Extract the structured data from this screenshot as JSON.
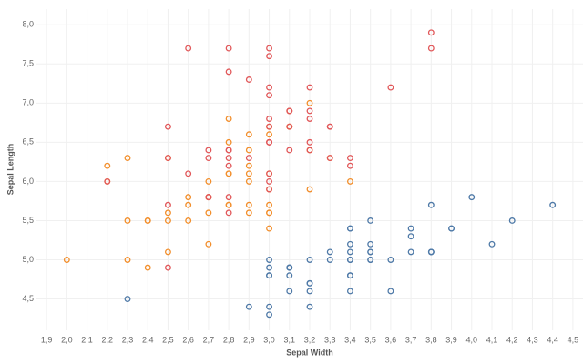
{
  "chart_data": {
    "type": "scatter",
    "x_label": "Sepal Width",
    "y_label": "Sepal Length",
    "grid": true,
    "xlim": [
      1.85,
      4.55
    ],
    "ylim": [
      4.1,
      8.2
    ],
    "xticks": [
      {
        "value": 1.9,
        "label": "1,9"
      },
      {
        "value": 2.0,
        "label": "2,0"
      },
      {
        "value": 2.1,
        "label": "2,1"
      },
      {
        "value": 2.2,
        "label": "2,2"
      },
      {
        "value": 2.3,
        "label": "2,3"
      },
      {
        "value": 2.4,
        "label": "2,4"
      },
      {
        "value": 2.5,
        "label": "2,5"
      },
      {
        "value": 2.6,
        "label": "2,6"
      },
      {
        "value": 2.7,
        "label": "2,7"
      },
      {
        "value": 2.8,
        "label": "2,8"
      },
      {
        "value": 2.9,
        "label": "2,9"
      },
      {
        "value": 3.0,
        "label": "3,0"
      },
      {
        "value": 3.1,
        "label": "3,1"
      },
      {
        "value": 3.2,
        "label": "3,2"
      },
      {
        "value": 3.3,
        "label": "3,3"
      },
      {
        "value": 3.4,
        "label": "3,4"
      },
      {
        "value": 3.5,
        "label": "3,5"
      },
      {
        "value": 3.6,
        "label": "3,6"
      },
      {
        "value": 3.7,
        "label": "3,7"
      },
      {
        "value": 3.8,
        "label": "3,8"
      },
      {
        "value": 3.9,
        "label": "3,9"
      },
      {
        "value": 4.0,
        "label": "4,0"
      },
      {
        "value": 4.1,
        "label": "4,1"
      },
      {
        "value": 4.2,
        "label": "4,2"
      },
      {
        "value": 4.3,
        "label": "4,3"
      },
      {
        "value": 4.4,
        "label": "4,4"
      },
      {
        "value": 4.5,
        "label": "4,5"
      }
    ],
    "yticks": [
      {
        "value": 4.5,
        "label": "4,5"
      },
      {
        "value": 5.0,
        "label": "5,0"
      },
      {
        "value": 5.5,
        "label": "5,5"
      },
      {
        "value": 6.0,
        "label": "6,0"
      },
      {
        "value": 6.5,
        "label": "6,5"
      },
      {
        "value": 7.0,
        "label": "7,0"
      },
      {
        "value": 7.5,
        "label": "7,5"
      },
      {
        "value": 8.0,
        "label": "8,0"
      }
    ],
    "series": [
      {
        "color": "#4e79a7",
        "x": [
          3.5,
          3.0,
          3.2,
          3.1,
          3.6,
          3.9,
          3.4,
          3.4,
          2.9,
          3.1,
          3.7,
          3.4,
          3.0,
          3.0,
          4.0,
          4.4,
          3.9,
          3.5,
          3.8,
          3.8,
          3.4,
          3.7,
          3.6,
          3.3,
          3.4,
          3.0,
          3.4,
          3.5,
          3.4,
          3.2,
          3.1,
          3.4,
          4.1,
          4.2,
          3.1,
          3.2,
          3.5,
          3.1,
          3.0,
          3.4,
          3.5,
          2.3,
          3.2,
          3.5,
          3.8,
          3.0,
          3.8,
          3.2,
          3.7,
          3.3
        ],
        "values": [
          5.1,
          4.9,
          4.7,
          4.6,
          5.0,
          5.4,
          4.6,
          5.0,
          4.4,
          4.9,
          5.4,
          4.8,
          4.8,
          4.3,
          5.8,
          5.7,
          5.4,
          5.1,
          5.7,
          5.1,
          5.4,
          5.1,
          4.6,
          5.1,
          4.8,
          5.0,
          5.0,
          5.2,
          5.2,
          4.7,
          4.8,
          5.4,
          5.2,
          5.5,
          4.9,
          5.0,
          5.5,
          4.9,
          4.4,
          5.1,
          5.0,
          4.5,
          4.4,
          5.0,
          5.1,
          4.8,
          5.1,
          4.6,
          5.3,
          5.0
        ]
      },
      {
        "color": "#f28e2b",
        "x": [
          3.2,
          3.2,
          3.1,
          2.3,
          2.8,
          2.8,
          3.3,
          2.4,
          2.9,
          2.7,
          2.0,
          3.0,
          2.2,
          2.9,
          2.9,
          3.1,
          3.0,
          2.7,
          2.2,
          2.5,
          3.2,
          2.8,
          2.5,
          2.8,
          2.9,
          3.0,
          2.8,
          3.0,
          2.9,
          2.6,
          2.4,
          2.4,
          2.7,
          2.7,
          3.0,
          3.4,
          3.1,
          2.3,
          3.0,
          2.5,
          2.6,
          3.0,
          2.6,
          2.3,
          2.7,
          3.0,
          2.9,
          2.9,
          2.5,
          2.8
        ],
        "values": [
          7.0,
          6.4,
          6.9,
          5.5,
          6.5,
          5.7,
          6.3,
          4.9,
          6.6,
          5.2,
          5.0,
          5.9,
          6.0,
          6.1,
          5.6,
          6.7,
          5.6,
          5.8,
          6.2,
          5.6,
          5.9,
          6.1,
          6.3,
          6.1,
          6.4,
          6.6,
          6.8,
          6.7,
          6.0,
          5.7,
          5.5,
          5.5,
          5.8,
          6.0,
          5.4,
          6.0,
          6.7,
          6.3,
          5.6,
          5.5,
          5.5,
          6.1,
          5.8,
          5.0,
          5.6,
          5.7,
          5.7,
          6.2,
          5.1,
          5.7
        ]
      },
      {
        "color": "#e15759",
        "x": [
          3.3,
          2.7,
          3.0,
          2.9,
          3.0,
          3.0,
          2.5,
          2.9,
          2.5,
          3.6,
          3.2,
          2.7,
          3.0,
          2.5,
          2.8,
          3.2,
          3.0,
          3.8,
          2.6,
          2.2,
          3.2,
          2.8,
          2.8,
          2.7,
          3.3,
          3.2,
          2.8,
          3.0,
          2.8,
          3.0,
          2.8,
          3.8,
          2.8,
          2.8,
          2.6,
          3.0,
          3.4,
          3.1,
          3.0,
          3.1,
          3.1,
          3.1,
          2.7,
          3.2,
          3.3,
          3.0,
          2.5,
          3.0,
          3.4,
          3.0
        ],
        "values": [
          6.3,
          5.8,
          7.1,
          6.3,
          6.5,
          7.6,
          4.9,
          7.3,
          6.7,
          7.2,
          6.5,
          6.4,
          6.8,
          5.7,
          5.8,
          6.4,
          6.5,
          7.7,
          7.7,
          6.0,
          6.9,
          5.6,
          7.7,
          6.3,
          6.7,
          7.2,
          6.2,
          6.1,
          6.4,
          7.2,
          7.4,
          7.9,
          6.4,
          6.3,
          6.1,
          7.7,
          6.3,
          6.4,
          6.0,
          6.9,
          6.7,
          6.9,
          5.8,
          6.8,
          6.7,
          6.7,
          6.3,
          6.5,
          6.2,
          5.9
        ]
      }
    ]
  }
}
